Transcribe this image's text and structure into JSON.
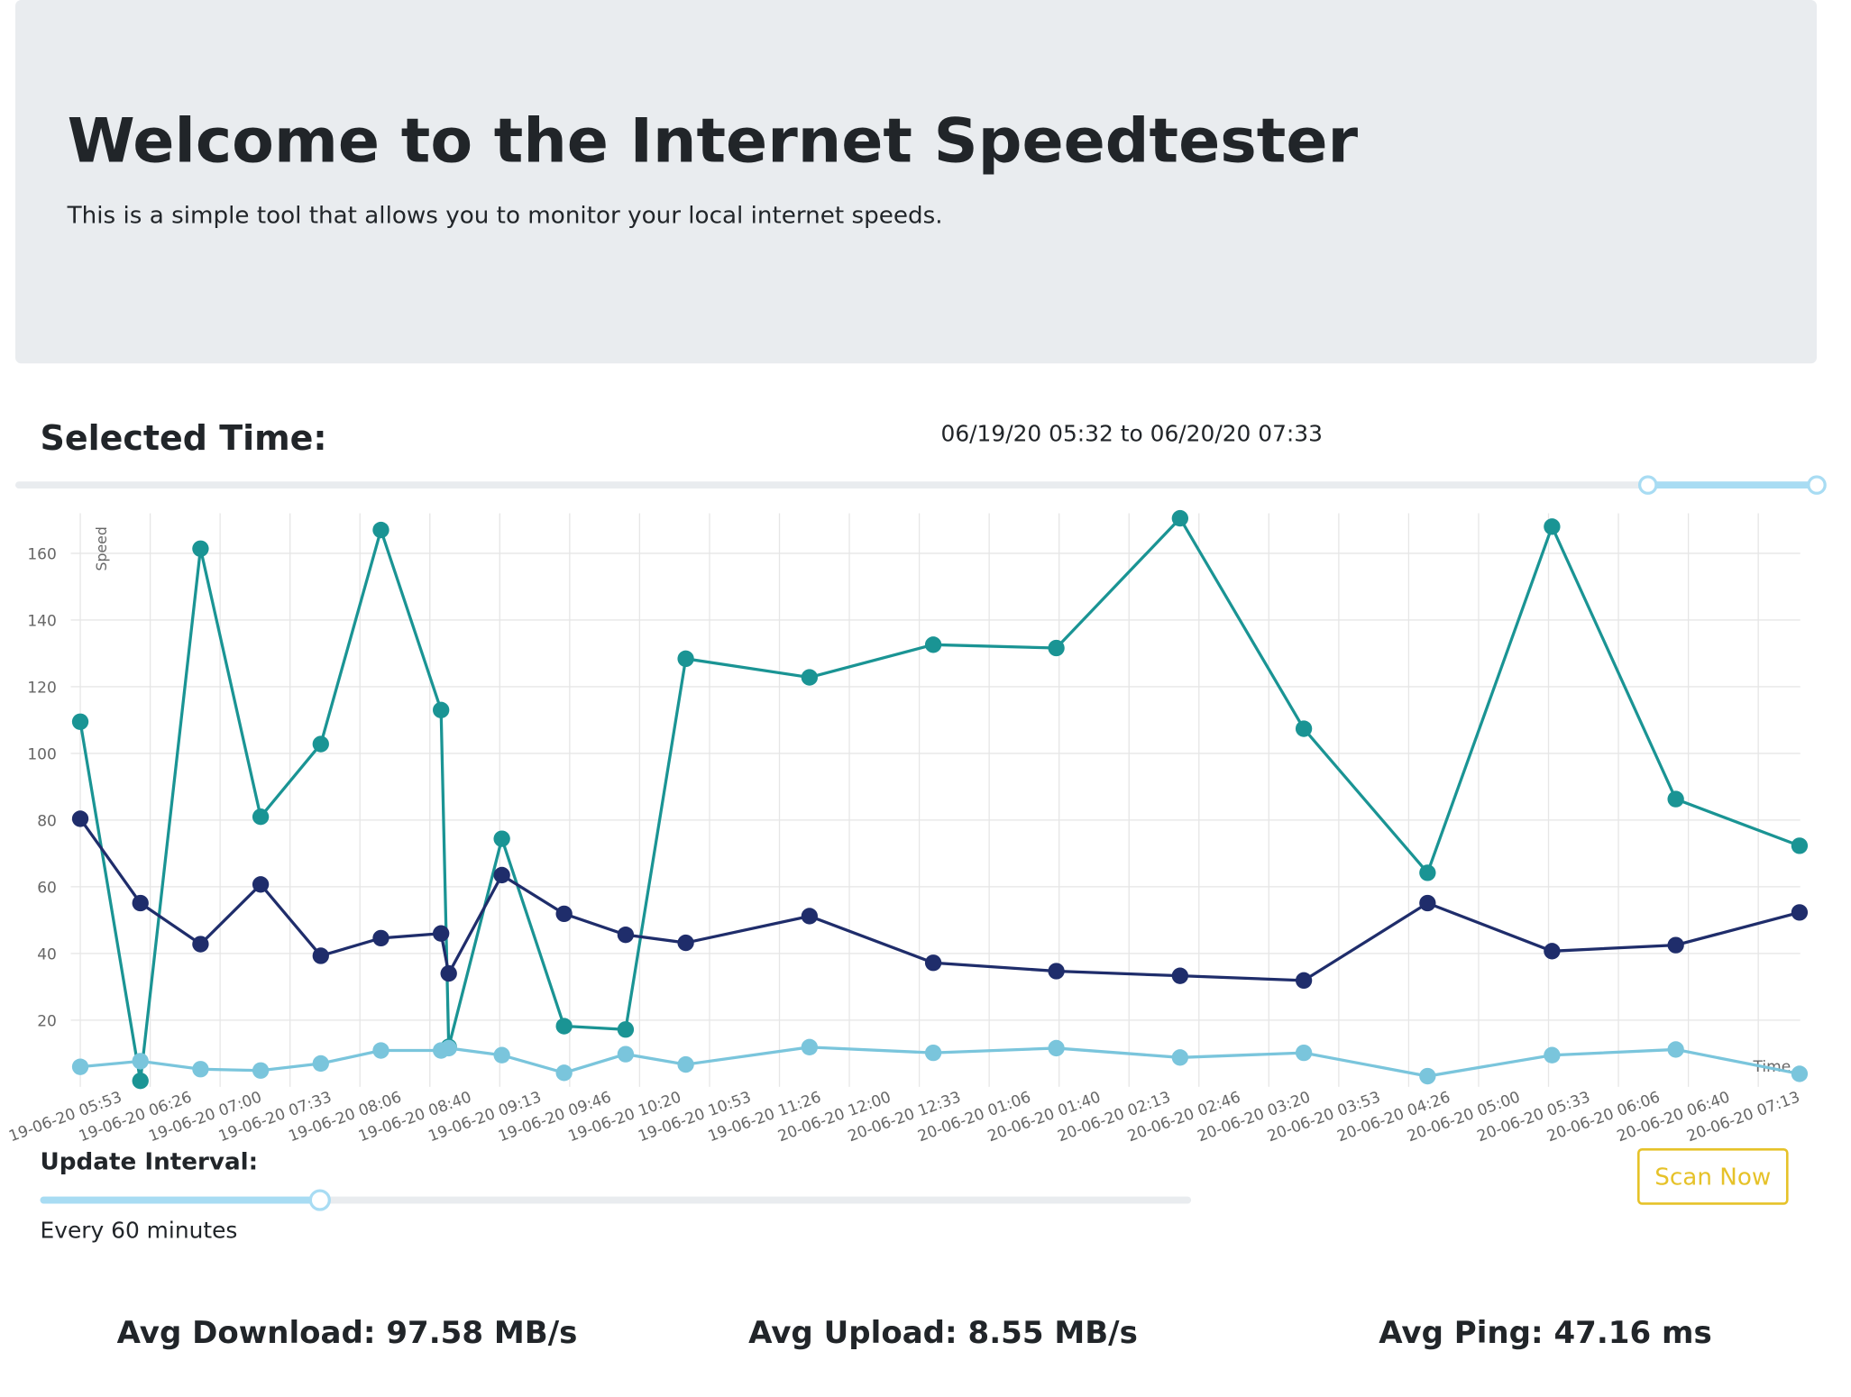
{
  "header": {
    "title": "Welcome to the Internet Speedtester",
    "subtitle": "This is a simple tool that allows you to monitor your local internet speeds."
  },
  "selected_time": {
    "label": "Selected Time:",
    "range": "06/19/20 05:32 to 06/20/20 07:33"
  },
  "chart_data": {
    "type": "line",
    "y_label": "Speed",
    "x_label": "Time",
    "x": [
      0,
      0.86,
      1.72,
      2.58,
      3.44,
      4.3,
      5.16,
      5.27,
      6.03,
      6.92,
      7.8,
      8.66,
      10.43,
      12.2,
      13.96,
      15.73,
      17.5,
      19.27,
      21.05,
      22.82,
      24.59
    ],
    "xlim": [
      0,
      24.6
    ],
    "xticks": [
      {
        "value": 0,
        "label": "19-06-20 05:53"
      },
      {
        "value": 1,
        "label": "19-06-20 06:26"
      },
      {
        "value": 2,
        "label": "19-06-20 07:00"
      },
      {
        "value": 3,
        "label": "19-06-20 07:33"
      },
      {
        "value": 4,
        "label": "19-06-20 08:06"
      },
      {
        "value": 5,
        "label": "19-06-20 08:40"
      },
      {
        "value": 6,
        "label": "19-06-20 09:13"
      },
      {
        "value": 7,
        "label": "19-06-20 09:46"
      },
      {
        "value": 8,
        "label": "19-06-20 10:20"
      },
      {
        "value": 9,
        "label": "19-06-20 10:53"
      },
      {
        "value": 10,
        "label": "19-06-20 11:26"
      },
      {
        "value": 11,
        "label": "20-06-20 12:00"
      },
      {
        "value": 12,
        "label": "20-06-20 12:33"
      },
      {
        "value": 13,
        "label": "20-06-20 01:06"
      },
      {
        "value": 14,
        "label": "20-06-20 01:40"
      },
      {
        "value": 15,
        "label": "20-06-20 02:13"
      },
      {
        "value": 16,
        "label": "20-06-20 02:46"
      },
      {
        "value": 17,
        "label": "20-06-20 03:20"
      },
      {
        "value": 18,
        "label": "20-06-20 03:53"
      },
      {
        "value": 19,
        "label": "20-06-20 04:26"
      },
      {
        "value": 20,
        "label": "20-06-20 05:00"
      },
      {
        "value": 21,
        "label": "20-06-20 05:33"
      },
      {
        "value": 22,
        "label": "20-06-20 06:06"
      },
      {
        "value": 23,
        "label": "20-06-20 06:40"
      },
      {
        "value": 24,
        "label": "20-06-20 07:13"
      }
    ],
    "ylim": [
      0,
      172
    ],
    "yticks": [
      20,
      40,
      60,
      80,
      100,
      120,
      140,
      160
    ],
    "grid": true,
    "series": [
      {
        "color": "#1a9494",
        "values": [
          109.5,
          1.8,
          161.4,
          81,
          102.8,
          167,
          113,
          12,
          74.4,
          18.2,
          17.2,
          128.4,
          122.8,
          132.6,
          131.6,
          170.5,
          107.4,
          64.2,
          168,
          86.3,
          72.3
        ]
      },
      {
        "color": "#1f2d6b",
        "values": [
          80.4,
          55.1,
          42.8,
          60.7,
          39.3,
          44.6,
          46,
          34,
          63.5,
          51.9,
          45.6,
          43.2,
          51.2,
          37.2,
          34.7,
          33.3,
          31.9,
          55.1,
          40.7,
          42.5,
          52.3
        ]
      },
      {
        "color": "#7ac5dc",
        "values": [
          6,
          7.7,
          5.3,
          4.9,
          7,
          10.9,
          10.9,
          11.6,
          9.5,
          4.2,
          9.8,
          6.7,
          11.9,
          10.2,
          11.6,
          8.8,
          10.2,
          3.2,
          9.5,
          11.2,
          3.9
        ]
      }
    ]
  },
  "update_interval": {
    "label": "Update Interval:",
    "value_text": "Every 60 minutes"
  },
  "scan_button": "Scan Now",
  "averages": [
    "Avg Download: 97.58 MB/s",
    "Avg Upload: 8.55 MB/s",
    "Avg Ping: 47.16 ms"
  ]
}
